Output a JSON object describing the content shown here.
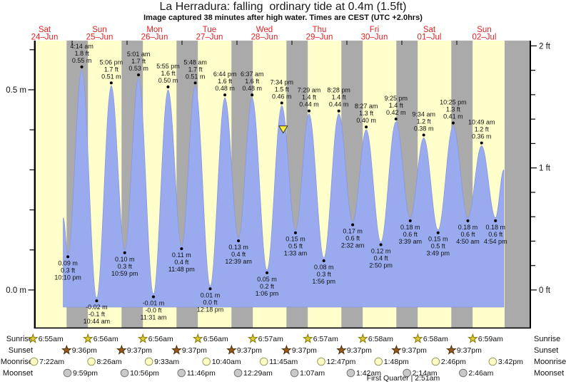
{
  "title": "La Herradura: falling  ordinary tide at 0.4m (1.5ft)",
  "subtitle": "Image captured 38 minutes after high water. Times are CEST (UTC +2.0hrs)",
  "footer": "First Quarter | 2:51am",
  "colors": {
    "day_band": "#ffffcc",
    "night_band": "#aaaaaa",
    "tide_fill": "#99aaee",
    "tide_edge": "#8898e0",
    "header_red": "#e32222",
    "label_text": "#111111",
    "now_marker": "#ffee33",
    "sunrise_star": "#d9cb35",
    "sunrise_star_edge": "#877700",
    "sunset_star": "#9b5a15",
    "sunset_star_edge": "#4d2d08",
    "moonrise_circle": "#ffffc4",
    "moonrise_edge": "#999966",
    "moonset_circle": "#c9c9c9",
    "moonset_edge": "#777777"
  },
  "days": [
    {
      "name": "Sat",
      "date": "24–Jun"
    },
    {
      "name": "Sun",
      "date": "25–Jun"
    },
    {
      "name": "Mon",
      "date": "26–Jun"
    },
    {
      "name": "Tue",
      "date": "27–Jun"
    },
    {
      "name": "Wed",
      "date": "28–Jun"
    },
    {
      "name": "Thu",
      "date": "29–Jun"
    },
    {
      "name": "Fri",
      "date": "30–Jun"
    },
    {
      "name": "Sat",
      "date": "01–Jul"
    },
    {
      "name": "Sun",
      "date": "02–Jul"
    }
  ],
  "axis_left": [
    {
      "label": "0.5 m",
      "m": 0.5
    },
    {
      "label": "0.0 m",
      "m": 0.0
    }
  ],
  "axis_right": [
    {
      "label": "2 ft",
      "ft": 2
    },
    {
      "label": "1 ft",
      "ft": 1
    },
    {
      "label": "0 ft",
      "ft": 0
    }
  ],
  "chart_data": {
    "type": "area",
    "title": "La Herradura: falling ordinary tide at 0.4m (1.5ft)",
    "y_units": [
      "m",
      "ft"
    ],
    "y_range_m": [
      -0.1,
      0.62
    ],
    "high_tides": [
      {
        "day_index": 1,
        "time": "4:14 am",
        "ft": "1.8 ft",
        "m_label": "0.55 m",
        "m": 0.55
      },
      {
        "day_index": 1,
        "time": "5:06 pm",
        "ft": "1.7 ft",
        "m_label": "0.51 m",
        "m": 0.51
      },
      {
        "day_index": 2,
        "time": "5:01 am",
        "ft": "1.7 ft",
        "m_label": "0.53 m",
        "m": 0.53
      },
      {
        "day_index": 2,
        "time": "5:55 pm",
        "ft": "1.6 ft",
        "m_label": "0.50 m",
        "m": 0.5
      },
      {
        "day_index": 3,
        "time": "5:48 am",
        "ft": "1.7 ft",
        "m_label": "0.51 m",
        "m": 0.51
      },
      {
        "day_index": 3,
        "time": "6:44 pm",
        "ft": "1.6 ft",
        "m_label": "0.48 m",
        "m": 0.48
      },
      {
        "day_index": 4,
        "time": "6:37 am",
        "ft": "1.6 ft",
        "m_label": "0.48 m",
        "m": 0.48
      },
      {
        "day_index": 4,
        "time": "7:34 pm",
        "ft": "1.5 ft",
        "m_label": "0.46 m",
        "m": 0.46
      },
      {
        "day_index": 5,
        "time": "7:29 am",
        "ft": "1.4 ft",
        "m_label": "0.44 m",
        "m": 0.44
      },
      {
        "day_index": 5,
        "time": "8:28 pm",
        "ft": "1.4 ft",
        "m_label": "0.44 m",
        "m": 0.44
      },
      {
        "day_index": 6,
        "time": "8:27 am",
        "ft": "1.3 ft",
        "m_label": "0.40 m",
        "m": 0.4
      },
      {
        "day_index": 6,
        "time": "9:25 pm",
        "ft": "1.4 ft",
        "m_label": "0.42 m",
        "m": 0.42
      },
      {
        "day_index": 7,
        "time": "9:34 am",
        "ft": "1.2 ft",
        "m_label": "0.38 m",
        "m": 0.38
      },
      {
        "day_index": 7,
        "time": "10:25 pm",
        "ft": "1.3 ft",
        "m_label": "0.41 m",
        "m": 0.41
      },
      {
        "day_index": 8,
        "time": "10:49 am",
        "ft": "1.2 ft",
        "m_label": "0.36 m",
        "m": 0.36
      }
    ],
    "low_tides": [
      {
        "day_index": 0,
        "time": "10:10 pm",
        "ft": "0.3 ft",
        "m_label": "0.09 m",
        "m": 0.09
      },
      {
        "day_index": 1,
        "time": "10:44 am",
        "ft": "-0.1 ft",
        "m_label": "-0.02 m",
        "m": -0.02
      },
      {
        "day_index": 1,
        "time": "10:59 pm",
        "ft": "0.3 ft",
        "m_label": "0.10 m",
        "m": 0.1
      },
      {
        "day_index": 2,
        "time": "11:31 am",
        "ft": "-0.0 ft",
        "m_label": "-0.01 m",
        "m": -0.01
      },
      {
        "day_index": 2,
        "time": "11:48 pm",
        "ft": "0.4 ft",
        "m_label": "0.11 m",
        "m": 0.11
      },
      {
        "day_index": 3,
        "time": "12:18 pm",
        "ft": "0.0 ft",
        "m_label": "0.01 m",
        "m": 0.01
      },
      {
        "day_index": 4,
        "time": "12:39 am",
        "ft": "0.4 ft",
        "m_label": "0.13 m",
        "m": 0.13
      },
      {
        "day_index": 4,
        "time": "1:06 pm",
        "ft": "0.2 ft",
        "m_label": "0.05 m",
        "m": 0.05
      },
      {
        "day_index": 5,
        "time": "1:33 am",
        "ft": "0.5 ft",
        "m_label": "0.15 m",
        "m": 0.15
      },
      {
        "day_index": 5,
        "time": "1:56 pm",
        "ft": "0.3 ft",
        "m_label": "0.08 m",
        "m": 0.08
      },
      {
        "day_index": 6,
        "time": "2:32 am",
        "ft": "0.6 ft",
        "m_label": "0.17 m",
        "m": 0.17
      },
      {
        "day_index": 6,
        "time": "2:50 pm",
        "ft": "0.4 ft",
        "m_label": "0.12 m",
        "m": 0.12
      },
      {
        "day_index": 7,
        "time": "3:39 am",
        "ft": "0.6 ft",
        "m_label": "0.18 m",
        "m": 0.18
      },
      {
        "day_index": 7,
        "time": "3:49 pm",
        "ft": "0.5 ft",
        "m_label": "0.15 m",
        "m": 0.15
      },
      {
        "day_index": 8,
        "time": "4:50 am",
        "ft": "0.6 ft",
        "m_label": "0.18 m",
        "m": 0.18
      },
      {
        "day_index": 8,
        "time": "4:54 pm",
        "ft": "0.6 ft",
        "m_label": "0.18 m",
        "m": 0.18
      }
    ],
    "now": {
      "day_index": 4,
      "hour": 20.2,
      "level_m": 0.4
    }
  },
  "sun_moon": {
    "rows": [
      {
        "label": "Sunrise",
        "icon": "sunrise-star",
        "entries": [
          {
            "day_index": 0,
            "time": "6:55am"
          },
          {
            "day_index": 1,
            "time": "6:56am"
          },
          {
            "day_index": 2,
            "time": "6:56am"
          },
          {
            "day_index": 3,
            "time": "6:56am"
          },
          {
            "day_index": 4,
            "time": "6:57am"
          },
          {
            "day_index": 5,
            "time": "6:57am"
          },
          {
            "day_index": 6,
            "time": "6:58am"
          },
          {
            "day_index": 7,
            "time": "6:58am"
          },
          {
            "day_index": 8,
            "time": "6:59am"
          }
        ]
      },
      {
        "label": "Sunset",
        "icon": "sunset-star",
        "entries": [
          {
            "day_index": 0,
            "time": "9:36pm"
          },
          {
            "day_index": 1,
            "time": "9:37pm"
          },
          {
            "day_index": 2,
            "time": "9:37pm"
          },
          {
            "day_index": 3,
            "time": "9:37pm"
          },
          {
            "day_index": 4,
            "time": "9:37pm"
          },
          {
            "day_index": 5,
            "time": "9:37pm"
          },
          {
            "day_index": 6,
            "time": "9:37pm"
          },
          {
            "day_index": 7,
            "time": "9:37pm"
          }
        ]
      },
      {
        "label": "Moonrise",
        "icon": "moonrise-moon",
        "entries": [
          {
            "day_index": 0,
            "time": "7:22am"
          },
          {
            "day_index": 1,
            "time": "8:26am"
          },
          {
            "day_index": 2,
            "time": "9:33am"
          },
          {
            "day_index": 3,
            "time": "10:40am"
          },
          {
            "day_index": 4,
            "time": "11:45am"
          },
          {
            "day_index": 5,
            "time": "12:47pm"
          },
          {
            "day_index": 6,
            "time": "1:48pm"
          },
          {
            "day_index": 7,
            "time": "2:46pm"
          },
          {
            "day_index": 8,
            "time": "3:42pm"
          }
        ]
      },
      {
        "label": "Moonset",
        "icon": "moonset-moon",
        "entries": [
          {
            "day_index": 0,
            "time": "9:59pm"
          },
          {
            "day_index": 1,
            "time": "10:56pm"
          },
          {
            "day_index": 2,
            "time": "11:46pm"
          },
          {
            "day_index": 4,
            "time": "12:29am"
          },
          {
            "day_index": 5,
            "time": "1:07am"
          },
          {
            "day_index": 6,
            "time": "1:42am"
          },
          {
            "day_index": 7,
            "time": "2:14am"
          },
          {
            "day_index": 8,
            "time": "2:46am"
          }
        ]
      }
    ]
  }
}
